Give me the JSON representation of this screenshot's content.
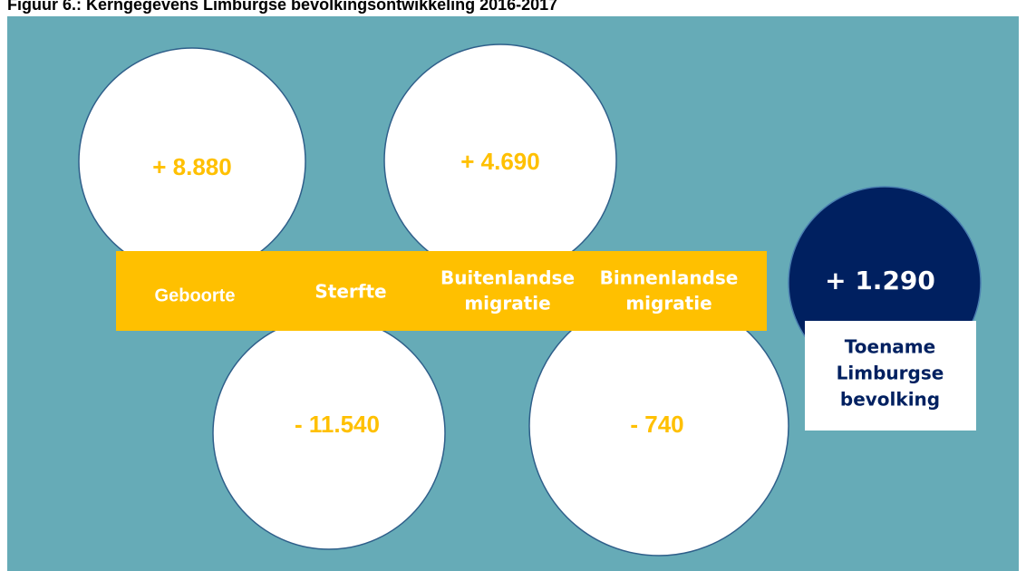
{
  "title": "Figuur 6.: Kerngegevens Limburgse bevolkingsontwikkeling 2016-2017",
  "components": [
    {
      "label": [
        "Geboorte"
      ],
      "value": "+ 8.880"
    },
    {
      "label": [
        "Sterfte"
      ],
      "value": "- 11.540"
    },
    {
      "label": [
        "Buitenlandse",
        "migratie"
      ],
      "value": "+ 4.690"
    },
    {
      "label": [
        "Binnenlandse",
        "migratie"
      ],
      "value": "- 740"
    }
  ],
  "result": {
    "value": "+ 1.290",
    "label": [
      "Toename",
      "Limburgse",
      "bevolking"
    ]
  }
}
